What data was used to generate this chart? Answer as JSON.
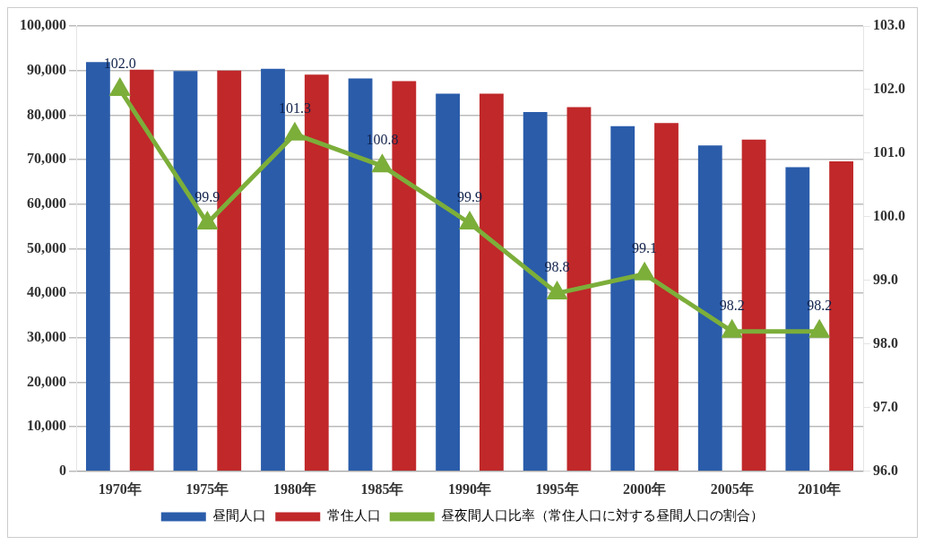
{
  "chart_data": {
    "type": "bar",
    "categories": [
      "1970年",
      "1975年",
      "1980年",
      "1985年",
      "1990年",
      "1995年",
      "2000年",
      "2005年",
      "2010年"
    ],
    "series": [
      {
        "name": "昼間人口",
        "color": "#2a5caa",
        "values": [
          91900,
          89900,
          90400,
          88200,
          84800,
          80700,
          77500,
          73200,
          68300
        ]
      },
      {
        "name": "常住人口",
        "color": "#c0282a",
        "values": [
          90200,
          90000,
          89100,
          87600,
          84800,
          81800,
          78200,
          74500,
          69600
        ]
      },
      {
        "name": "昼夜間人口比率（常住人口に対する昼間人口の割合）",
        "type": "line",
        "axis": "y2",
        "color": "#7cae3a",
        "marker": "triangle",
        "values": [
          102.0,
          99.9,
          101.3,
          100.8,
          99.9,
          98.8,
          99.1,
          98.2,
          98.2
        ],
        "value_labels": [
          "102.0",
          "99.9",
          "101.3",
          "100.8",
          "99.9",
          "98.8",
          "99.1",
          "98.2",
          "98.2"
        ]
      }
    ],
    "ylim": [
      0,
      100000
    ],
    "yticks": [
      {
        "value": 0,
        "label": "0"
      },
      {
        "value": 10000,
        "label": "10,000"
      },
      {
        "value": 20000,
        "label": "20,000"
      },
      {
        "value": 30000,
        "label": "30,000"
      },
      {
        "value": 40000,
        "label": "40,000"
      },
      {
        "value": 50000,
        "label": "50,000"
      },
      {
        "value": 60000,
        "label": "60,000"
      },
      {
        "value": 70000,
        "label": "70,000"
      },
      {
        "value": 80000,
        "label": "80,000"
      },
      {
        "value": 90000,
        "label": "90,000"
      },
      {
        "value": 100000,
        "label": "100,000"
      }
    ],
    "y2lim": [
      96,
      103
    ],
    "y2ticks": [
      {
        "value": 96,
        "label": "96.0"
      },
      {
        "value": 97,
        "label": "97.0"
      },
      {
        "value": 98,
        "label": "98.0"
      },
      {
        "value": 99,
        "label": "99.0"
      },
      {
        "value": 100,
        "label": "100.0"
      },
      {
        "value": 101,
        "label": "101.0"
      },
      {
        "value": 102,
        "label": "102.0"
      },
      {
        "value": 103,
        "label": "103.0"
      }
    ],
    "grid": "y",
    "legend": "bottom"
  }
}
